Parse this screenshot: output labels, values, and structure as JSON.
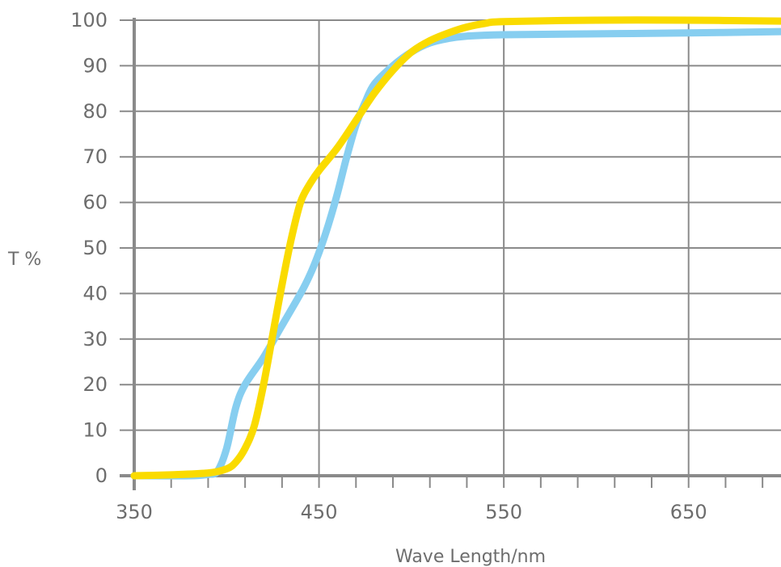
{
  "chart_data": {
    "type": "line",
    "title": "",
    "xlabel": "Wave Length/nm",
    "ylabel": "T %",
    "xlim": [
      350,
      700
    ],
    "ylim": [
      0,
      100
    ],
    "x_ticks": [
      "350",
      "450",
      "550",
      "650"
    ],
    "y_ticks": [
      "0",
      "10",
      "20",
      "30",
      "40",
      "50",
      "60",
      "70",
      "80",
      "90",
      "100"
    ],
    "grid": true,
    "colors": {
      "axis": "#8a8a8a",
      "grid": "#8a8a8a",
      "text": "#6d6d6d"
    },
    "series": [
      {
        "color": "#87cef0",
        "points": [
          [
            350,
            0
          ],
          [
            380,
            0
          ],
          [
            390,
            0.3
          ],
          [
            395,
            1
          ],
          [
            400,
            6
          ],
          [
            405,
            15
          ],
          [
            410,
            20
          ],
          [
            420,
            26
          ],
          [
            430,
            33
          ],
          [
            440,
            40
          ],
          [
            445,
            44
          ],
          [
            450,
            49
          ],
          [
            455,
            55
          ],
          [
            460,
            62
          ],
          [
            465,
            70
          ],
          [
            470,
            77
          ],
          [
            475,
            82
          ],
          [
            480,
            86
          ],
          [
            490,
            90
          ],
          [
            500,
            93
          ],
          [
            510,
            95
          ],
          [
            520,
            96
          ],
          [
            530,
            96.5
          ],
          [
            550,
            96.8
          ],
          [
            600,
            97
          ],
          [
            650,
            97.2
          ],
          [
            700,
            97.5
          ]
        ]
      },
      {
        "color": "#fadb00",
        "points": [
          [
            350,
            0
          ],
          [
            370,
            0.2
          ],
          [
            390,
            0.6
          ],
          [
            400,
            1.5
          ],
          [
            405,
            3
          ],
          [
            410,
            6
          ],
          [
            415,
            11
          ],
          [
            420,
            20
          ],
          [
            425,
            31
          ],
          [
            430,
            42
          ],
          [
            435,
            52
          ],
          [
            440,
            60
          ],
          [
            445,
            64
          ],
          [
            450,
            67
          ],
          [
            460,
            72
          ],
          [
            470,
            78
          ],
          [
            480,
            84
          ],
          [
            490,
            89
          ],
          [
            500,
            93
          ],
          [
            510,
            95.5
          ],
          [
            520,
            97.2
          ],
          [
            530,
            98.5
          ],
          [
            540,
            99.3
          ],
          [
            550,
            99.7
          ],
          [
            600,
            100
          ],
          [
            650,
            100
          ],
          [
            700,
            99.8
          ]
        ]
      }
    ]
  }
}
